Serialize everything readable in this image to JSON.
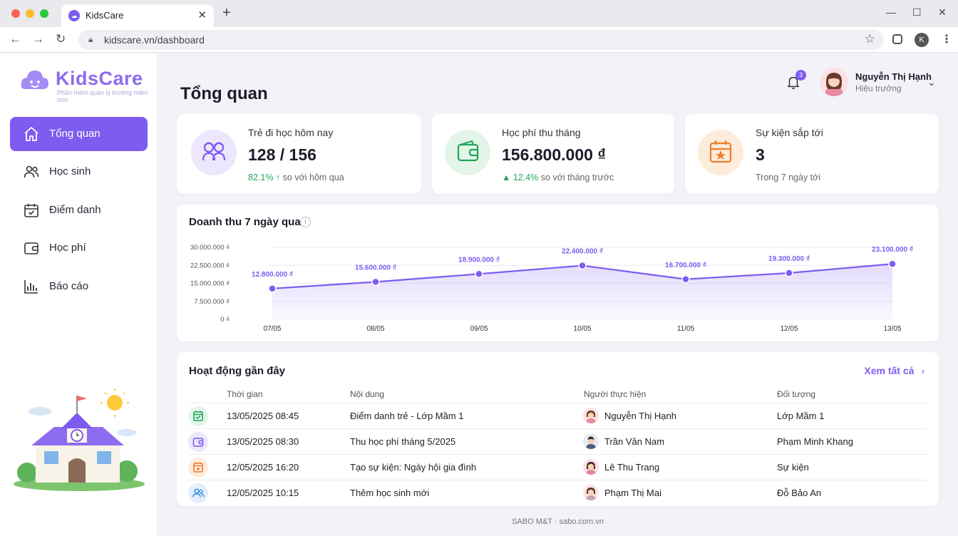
{
  "browser": {
    "tab_title": "KidsCare",
    "url": "kidscare.vn/dashboard",
    "profile_initial": "K"
  },
  "sidebar": {
    "brand": "KidsCare",
    "tagline": "Phần mềm quản lý trường mầm non",
    "items": [
      {
        "label": "Tổng quan",
        "icon": "home-icon",
        "active": true
      },
      {
        "label": "Học sinh",
        "icon": "students-icon",
        "active": false
      },
      {
        "label": "Điểm danh",
        "icon": "calendar-check-icon",
        "active": false
      },
      {
        "label": "Học phí",
        "icon": "wallet-icon",
        "active": false
      },
      {
        "label": "Báo cáo",
        "icon": "bar-chart-icon",
        "active": false
      }
    ]
  },
  "header": {
    "title": "Tổng quan",
    "notification_count": "3",
    "user_name": "Nguyễn Thị Hạnh",
    "user_role": "Hiệu trưởng"
  },
  "stats": [
    {
      "label": "Trẻ đi học hôm nay",
      "value": "128 / 156",
      "delta": "82.1% ↑",
      "delta_text": "so với hôm qua",
      "icon": "children-icon",
      "color": "#7d5cef"
    },
    {
      "label": "Học phí thu tháng",
      "value": "156.800.000 ₫",
      "delta": "▲ 12.4%",
      "delta_text": "so với tháng trước",
      "icon": "wallet-icon",
      "color": "#22a55a"
    },
    {
      "label": "Sự kiện sắp tới",
      "value": "3",
      "delta": "",
      "delta_text": "Trong 7 ngày tới",
      "icon": "calendar-star-icon",
      "color": "#f07d2c"
    }
  ],
  "chart": {
    "title": "Doanh thu 7 ngày qua"
  },
  "chart_data": {
    "type": "area",
    "categories": [
      "07/05",
      "08/05",
      "09/05",
      "10/05",
      "11/05",
      "12/05",
      "13/05"
    ],
    "values": [
      12800000,
      15600000,
      18900000,
      22400000,
      16700000,
      19300000,
      23100000
    ],
    "value_labels": [
      "12.800.000 ₫",
      "15.600.000 ₫",
      "18.900.000 ₫",
      "22.400.000 ₫",
      "16.700.000 ₫",
      "19.300.000 ₫",
      "23.100.000 ₫"
    ],
    "y_ticks": [
      0,
      7500000,
      15000000,
      22500000,
      30000000
    ],
    "y_tick_labels": [
      "0 ₫",
      "7.500.000 ₫",
      "15.000.000 ₫",
      "22.500.000 ₫",
      "30.000.000 ₫"
    ],
    "ylim": [
      0,
      30000000
    ],
    "color": "#7d5cef",
    "grid": true
  },
  "activity": {
    "title": "Hoạt động gần đây",
    "see_all": "Xem tất cả",
    "columns": [
      "Thời gian",
      "Nội dung",
      "Người thực hiện",
      "Đối tượng"
    ],
    "rows": [
      {
        "time": "13/05/2025 08:45",
        "content": "Điểm danh trẻ - Lớp Mầm 1",
        "actor": "Nguyễn Thị Hạnh",
        "target": "Lớp Mầm 1",
        "icon": "calendar-check-icon",
        "color": "#22a55a"
      },
      {
        "time": "13/05/2025 08:30",
        "content": "Thu học phí tháng 5/2025",
        "actor": "Trần Văn Nam",
        "target": "Phạm Minh Khang",
        "icon": "wallet-icon",
        "color": "#7d5cef"
      },
      {
        "time": "12/05/2025 16:20",
        "content": "Tạo sự kiện: Ngày hội gia đình",
        "actor": "Lê Thu Trang",
        "target": "Sự kiện",
        "icon": "calendar-plus-icon",
        "color": "#f07d2c"
      },
      {
        "time": "12/05/2025 10:15",
        "content": "Thêm học sinh mới",
        "actor": "Phạm Thị Mai",
        "target": "Đỗ Bảo An",
        "icon": "add-student-icon",
        "color": "#3b8fe0"
      }
    ]
  },
  "footer": "SABO M&T · sabo.com.vn"
}
